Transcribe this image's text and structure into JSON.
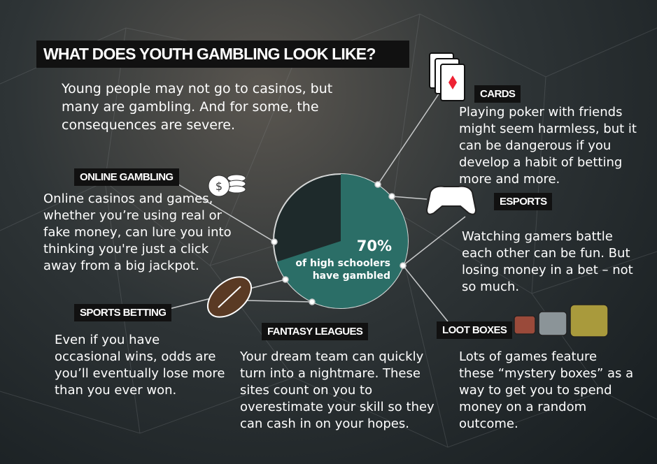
{
  "title": "WHAT DOES YOUTH GAMBLING LOOK LIKE?",
  "intro": "Young people may not go to casinos, but many are gambling. And for some, the consequences are severe.",
  "stat": {
    "value": 70,
    "label": "70%",
    "caption": "of high schoolers have gambled"
  },
  "sections": [
    {
      "heading": "CARDS",
      "text": "Playing poker with friends might seem harmless, but it can be dangerous if you develop a habit of betting more and more."
    },
    {
      "heading": "ONLINE GAMBLING",
      "text": "Online casinos and games, whether you’re using real or fake money, can lure you into thinking you're just a click away from a big jackpot."
    },
    {
      "heading": "ESPORTS",
      "text": "Watching gamers battle each other can be fun. But losing money in a bet – not so much."
    },
    {
      "heading": "SPORTS BETTING",
      "text": "Even if you have occasional wins, odds are you’ll eventually lose more than you ever won."
    },
    {
      "heading": "FANTASY LEAGUES",
      "text": "Your dream team can quickly turn into a nightmare. These sites count on you to overestimate your skill so they can cash in on your hopes."
    },
    {
      "heading": "LOOT BOXES",
      "text": "Lots of games feature these “mystery boxes” as a way to get you to spend money on a random outcome."
    }
  ]
}
